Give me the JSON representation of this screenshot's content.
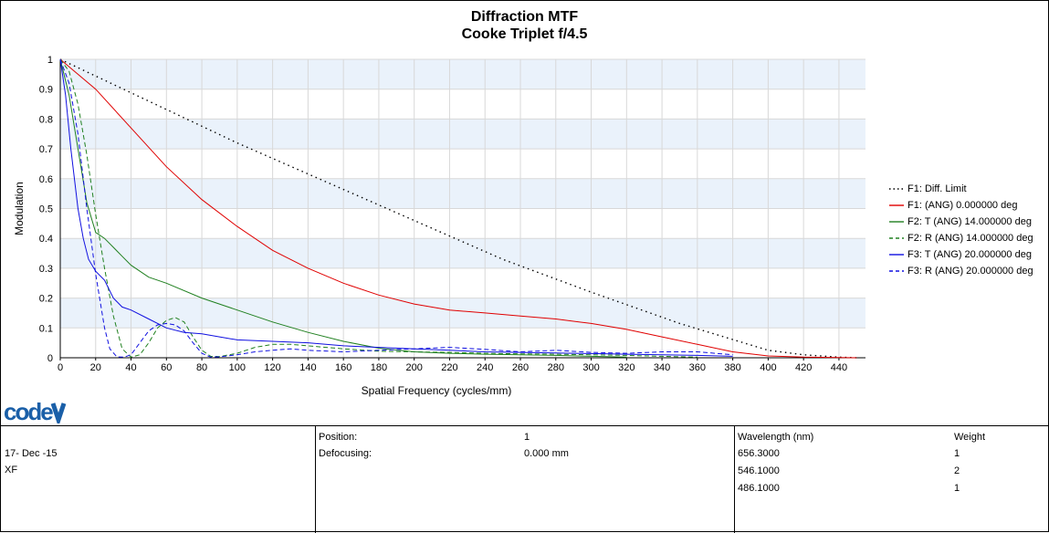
{
  "chart_data": {
    "type": "line",
    "title": "Diffraction MTF",
    "subtitle": "Cooke Triplet f/4.5",
    "xlabel": "Spatial Frequency (cycles/mm)",
    "ylabel": "Modulation",
    "xlim": [
      0,
      455
    ],
    "ylim": [
      0,
      1
    ],
    "x_ticks": [
      0,
      20,
      40,
      60,
      80,
      100,
      120,
      140,
      160,
      180,
      200,
      220,
      240,
      260,
      280,
      300,
      320,
      340,
      360,
      380,
      400,
      420,
      440
    ],
    "y_ticks": [
      0,
      0.1,
      0.2,
      0.3,
      0.4,
      0.5,
      0.6,
      0.7,
      0.8,
      0.9,
      1
    ],
    "y_tick_labels": [
      "0",
      "0.1",
      "0.2",
      "0.3",
      "0.4",
      "0.5",
      "0.6",
      "0.7",
      "0.8",
      "0.9",
      "1"
    ],
    "grid": true,
    "legend_position": "right",
    "series": [
      {
        "name": "F1: Diff. Limit",
        "color": "#000000",
        "dash": "dot",
        "x": [
          0,
          50,
          100,
          150,
          200,
          250,
          300,
          350,
          400,
          420,
          440,
          450
        ],
        "y": [
          1,
          0.86,
          0.72,
          0.59,
          0.46,
          0.33,
          0.22,
          0.115,
          0.025,
          0.01,
          0.002,
          0
        ]
      },
      {
        "name": "F1: (ANG) 0.000000 deg",
        "color": "#e00000",
        "dash": "solid",
        "x": [
          0,
          10,
          20,
          40,
          60,
          80,
          100,
          120,
          140,
          160,
          180,
          200,
          220,
          240,
          260,
          280,
          300,
          320,
          340,
          360,
          380,
          400,
          420,
          440,
          450
        ],
        "y": [
          1,
          0.95,
          0.9,
          0.77,
          0.64,
          0.53,
          0.44,
          0.36,
          0.3,
          0.25,
          0.21,
          0.18,
          0.16,
          0.15,
          0.14,
          0.13,
          0.115,
          0.095,
          0.07,
          0.045,
          0.02,
          0.006,
          0.002,
          0.001,
          0
        ]
      },
      {
        "name": "F2: T (ANG) 14.000000 deg",
        "color": "#208020",
        "dash": "solid",
        "x": [
          0,
          5,
          10,
          15,
          20,
          25,
          30,
          35,
          40,
          50,
          60,
          80,
          100,
          120,
          140,
          160,
          180,
          200,
          220,
          240,
          260,
          280,
          300,
          320
        ],
        "y": [
          1,
          0.88,
          0.7,
          0.52,
          0.42,
          0.4,
          0.37,
          0.34,
          0.31,
          0.27,
          0.25,
          0.2,
          0.16,
          0.12,
          0.085,
          0.055,
          0.032,
          0.02,
          0.015,
          0.012,
          0.01,
          0.008,
          0.005,
          0.002
        ]
      },
      {
        "name": "F2: R (ANG) 14.000000 deg",
        "color": "#208020",
        "dash": "dash",
        "x": [
          0,
          5,
          10,
          15,
          20,
          25,
          30,
          35,
          40,
          45,
          50,
          55,
          60,
          65,
          70,
          75,
          80,
          85,
          90,
          100,
          110,
          120,
          130,
          140,
          160,
          180,
          200,
          220,
          240,
          260,
          280,
          300,
          320,
          340,
          360
        ],
        "y": [
          1,
          0.96,
          0.85,
          0.68,
          0.48,
          0.3,
          0.14,
          0.03,
          0.002,
          0.01,
          0.05,
          0.1,
          0.125,
          0.135,
          0.12,
          0.07,
          0.025,
          0.005,
          0.004,
          0.015,
          0.035,
          0.045,
          0.045,
          0.04,
          0.03,
          0.022,
          0.02,
          0.018,
          0.015,
          0.013,
          0.012,
          0.01,
          0.008,
          0.005,
          0.002
        ]
      },
      {
        "name": "F3: T (ANG) 20.000000 deg",
        "color": "#1010e0",
        "dash": "solid",
        "x": [
          0,
          3,
          6,
          10,
          13,
          16,
          20,
          25,
          30,
          35,
          40,
          50,
          60,
          70,
          80,
          90,
          100,
          120,
          140,
          160,
          180,
          200,
          220,
          240,
          260,
          280,
          300,
          320,
          340,
          360,
          380
        ],
        "y": [
          1,
          0.88,
          0.7,
          0.5,
          0.4,
          0.33,
          0.29,
          0.26,
          0.2,
          0.17,
          0.16,
          0.13,
          0.1,
          0.085,
          0.08,
          0.07,
          0.06,
          0.055,
          0.05,
          0.04,
          0.035,
          0.03,
          0.025,
          0.02,
          0.018,
          0.016,
          0.014,
          0.012,
          0.01,
          0.008,
          0.005
        ]
      },
      {
        "name": "F3: R (ANG) 20.000000 deg",
        "color": "#1010e0",
        "dash": "dash",
        "x": [
          0,
          5,
          10,
          15,
          20,
          25,
          28,
          32,
          36,
          40,
          45,
          50,
          55,
          60,
          65,
          70,
          75,
          80,
          85,
          90,
          100,
          110,
          120,
          130,
          140,
          160,
          180,
          200,
          220,
          240,
          260,
          280,
          300,
          320,
          340,
          360,
          380
        ],
        "y": [
          1,
          0.92,
          0.75,
          0.5,
          0.28,
          0.1,
          0.03,
          0.003,
          0.002,
          0.01,
          0.05,
          0.09,
          0.11,
          0.115,
          0.11,
          0.09,
          0.05,
          0.015,
          0.002,
          0.003,
          0.01,
          0.02,
          0.025,
          0.03,
          0.025,
          0.02,
          0.025,
          0.03,
          0.035,
          0.028,
          0.02,
          0.025,
          0.018,
          0.015,
          0.02,
          0.02,
          0.01
        ]
      }
    ]
  },
  "logo_text": "code V",
  "info": {
    "date": "17- Dec -15",
    "id": "XF",
    "position_label": "Position:",
    "position_value": "1",
    "defocusing_label": "Defocusing:",
    "defocusing_value": "0.000 mm",
    "wavelength_header": "Wavelength (nm)",
    "weight_header": "Weight",
    "wavelengths": [
      {
        "wavelength": "656.3000",
        "weight": "1"
      },
      {
        "wavelength": "546.1000",
        "weight": "2"
      },
      {
        "wavelength": "486.1000",
        "weight": "1"
      }
    ]
  }
}
